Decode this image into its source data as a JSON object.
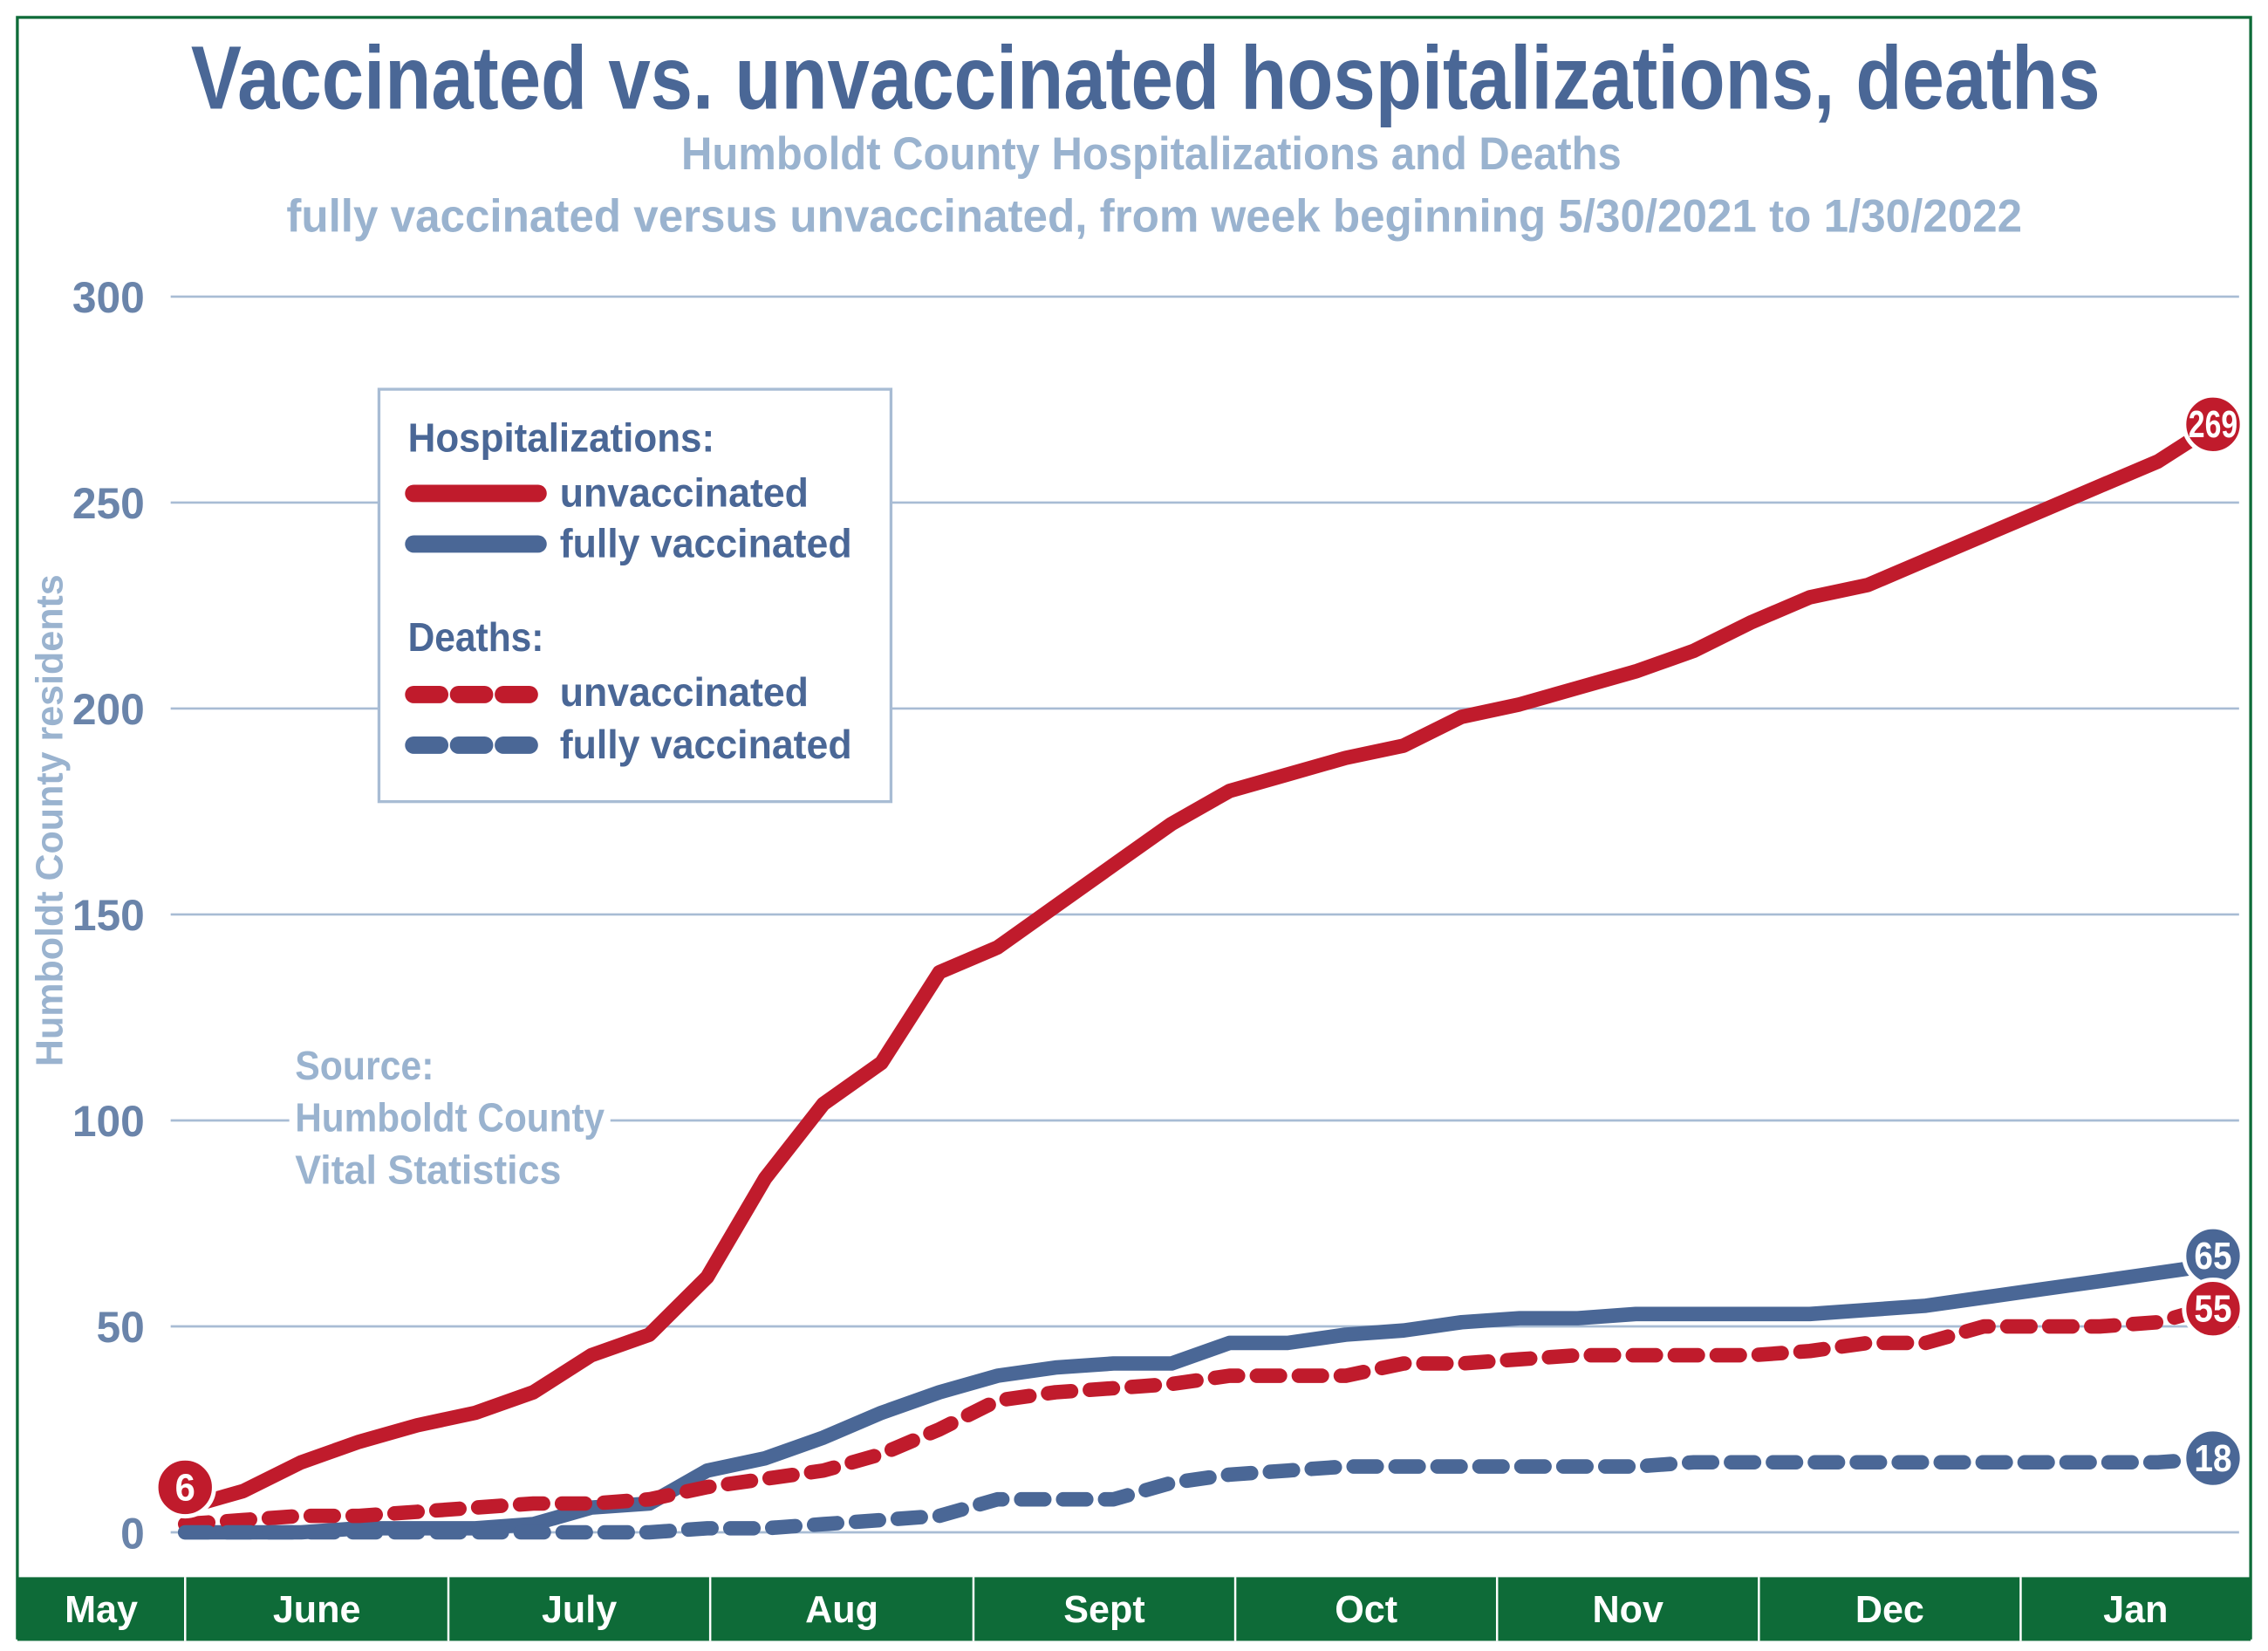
{
  "chart_data": {
    "type": "line",
    "title": "Vaccinated vs. unvaccinated hospitalizations, deaths",
    "subtitle": [
      "Humboldt County Hospitalizations and Deaths",
      "fully vaccinated versus unvaccinated, from week beginning 5/30/2021 to 1/30/2022"
    ],
    "ylabel": "Humboldt County residents",
    "xlabel": "",
    "ylim": [
      0,
      300
    ],
    "yticks": [
      "0",
      "50",
      "100",
      "150",
      "200",
      "250",
      "300"
    ],
    "grid": true,
    "x_start": "5/30/2021",
    "x_end": "1/30/2022",
    "x_interval": "weekly",
    "month_labels": [
      "May",
      "June",
      "July",
      "Aug",
      "Sept",
      "Oct",
      "Nov",
      "Dec",
      "Jan"
    ],
    "legend": {
      "placement": "top-left",
      "groups": [
        {
          "heading": "Hospitalizations:",
          "entries": [
            "unvaccinated",
            "fully vaccinated"
          ]
        },
        {
          "heading": "Deaths:",
          "entries": [
            "unvaccinated",
            "fully vaccinated"
          ]
        }
      ]
    },
    "series": [
      {
        "name": "Hospitalizations: unvaccinated",
        "color": "#c01b2c",
        "style": "solid",
        "end_label": "269",
        "start_label": "6",
        "values": [
          6,
          10,
          17,
          22,
          26,
          29,
          34,
          43,
          48,
          62,
          86,
          104,
          114,
          136,
          142,
          152,
          162,
          172,
          180,
          184,
          188,
          191,
          198,
          201,
          205,
          209,
          214,
          221,
          227,
          230,
          236,
          242,
          248,
          254,
          260,
          269
        ]
      },
      {
        "name": "Hospitalizations: fully vaccinated",
        "color": "#4a6796",
        "style": "solid",
        "end_label": "65",
        "values": [
          0,
          0,
          0,
          1,
          1,
          1,
          2,
          6,
          7,
          15,
          18,
          23,
          29,
          34,
          38,
          40,
          41,
          41,
          46,
          46,
          48,
          49,
          51,
          52,
          52,
          53,
          53,
          53,
          53,
          54,
          55,
          57,
          59,
          61,
          63,
          65
        ]
      },
      {
        "name": "Deaths: unvaccinated",
        "color": "#c01b2c",
        "style": "dashed",
        "end_label": "55",
        "values": [
          2,
          3,
          4,
          4,
          5,
          6,
          7,
          7,
          8,
          11,
          13,
          15,
          19,
          25,
          32,
          34,
          35,
          36,
          38,
          38,
          38,
          41,
          41,
          42,
          43,
          43,
          43,
          43,
          44,
          46,
          46,
          50,
          50,
          50,
          51,
          55
        ]
      },
      {
        "name": "Deaths: fully vaccinated",
        "color": "#4a6796",
        "style": "dashed",
        "end_label": "18",
        "values": [
          0,
          0,
          0,
          0,
          0,
          0,
          0,
          0,
          0,
          1,
          1,
          2,
          3,
          4,
          8,
          8,
          8,
          12,
          14,
          15,
          16,
          16,
          16,
          16,
          16,
          16,
          17,
          17,
          17,
          17,
          17,
          17,
          17,
          17,
          17,
          18
        ]
      }
    ],
    "source": [
      "Source:",
      "Humboldt County",
      "Vital Statistics"
    ]
  },
  "colors": {
    "red": "#c01b2c",
    "blue": "#4a6796",
    "light_blue": "#9ab3cf",
    "green": "#0e6b38"
  }
}
